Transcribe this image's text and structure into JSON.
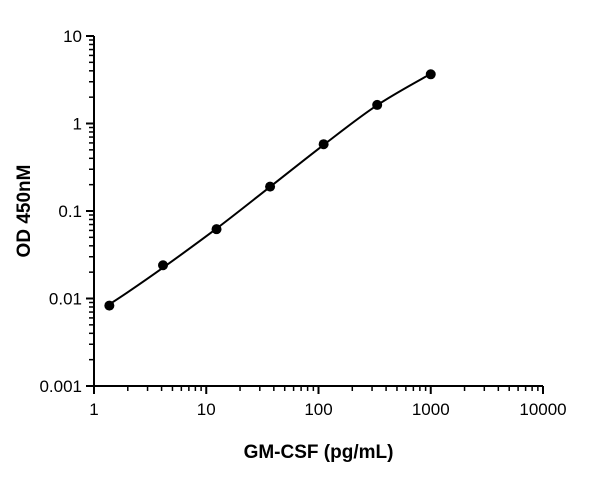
{
  "chart_data": {
    "type": "scatter",
    "title": "",
    "xlabel": "GM-CSF (pg/mL)",
    "ylabel": "OD 450nM",
    "x_scale": "log",
    "y_scale": "log",
    "xlim": [
      1,
      10000
    ],
    "ylim": [
      0.001,
      10
    ],
    "x_ticks": [
      1,
      10,
      100,
      1000,
      10000
    ],
    "x_tick_labels": [
      "1",
      "10",
      "100",
      "1000",
      "10000"
    ],
    "y_ticks": [
      0.001,
      0.01,
      0.1,
      1,
      10
    ],
    "y_tick_labels": [
      "0.001",
      "0.01",
      "0.1",
      "1",
      "10"
    ],
    "grid": false,
    "series": [
      {
        "x": [
          1.37,
          4.12,
          12.35,
          37.04,
          111.1,
          333.3,
          1000
        ],
        "y": [
          0.0083,
          0.024,
          0.062,
          0.19,
          0.58,
          1.63,
          3.65
        ]
      }
    ],
    "fit_curve": {
      "x": [
        1.3,
        2,
        4.12,
        12.35,
        37.04,
        111.1,
        333.3,
        1000
      ],
      "y": [
        0.0082,
        0.0118,
        0.0225,
        0.063,
        0.189,
        0.57,
        1.62,
        3.7
      ]
    }
  }
}
